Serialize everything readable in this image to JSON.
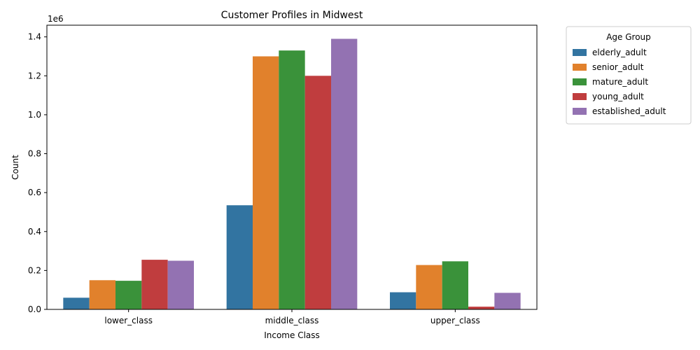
{
  "chart_data": {
    "type": "bar",
    "title": "Customer Profiles in Midwest",
    "xlabel": "Income Class",
    "ylabel": "Count",
    "y_offset_text": "1e6",
    "categories": [
      "lower_class",
      "middle_class",
      "upper_class"
    ],
    "ylim": [
      0,
      1460000
    ],
    "yticks": [
      0,
      200000,
      400000,
      600000,
      800000,
      1000000,
      1200000,
      1400000
    ],
    "ytick_labels": [
      "0.0",
      "0.2",
      "0.4",
      "0.6",
      "0.8",
      "1.0",
      "1.2",
      "1.4"
    ],
    "legend": {
      "title": "Age Group",
      "placement": "outside-top-right"
    },
    "grid": false,
    "series": [
      {
        "name": "elderly_adult",
        "color": "#3274a1",
        "values": [
          60000,
          535000,
          88000
        ]
      },
      {
        "name": "senior_adult",
        "color": "#e1812c",
        "values": [
          150000,
          1300000,
          228000
        ]
      },
      {
        "name": "mature_adult",
        "color": "#3a923a",
        "values": [
          147000,
          1330000,
          247000
        ]
      },
      {
        "name": "young_adult",
        "color": "#c03d3e",
        "values": [
          255000,
          1200000,
          14000
        ]
      },
      {
        "name": "established_adult",
        "color": "#9372b2",
        "values": [
          250000,
          1390000,
          85000
        ]
      }
    ]
  }
}
